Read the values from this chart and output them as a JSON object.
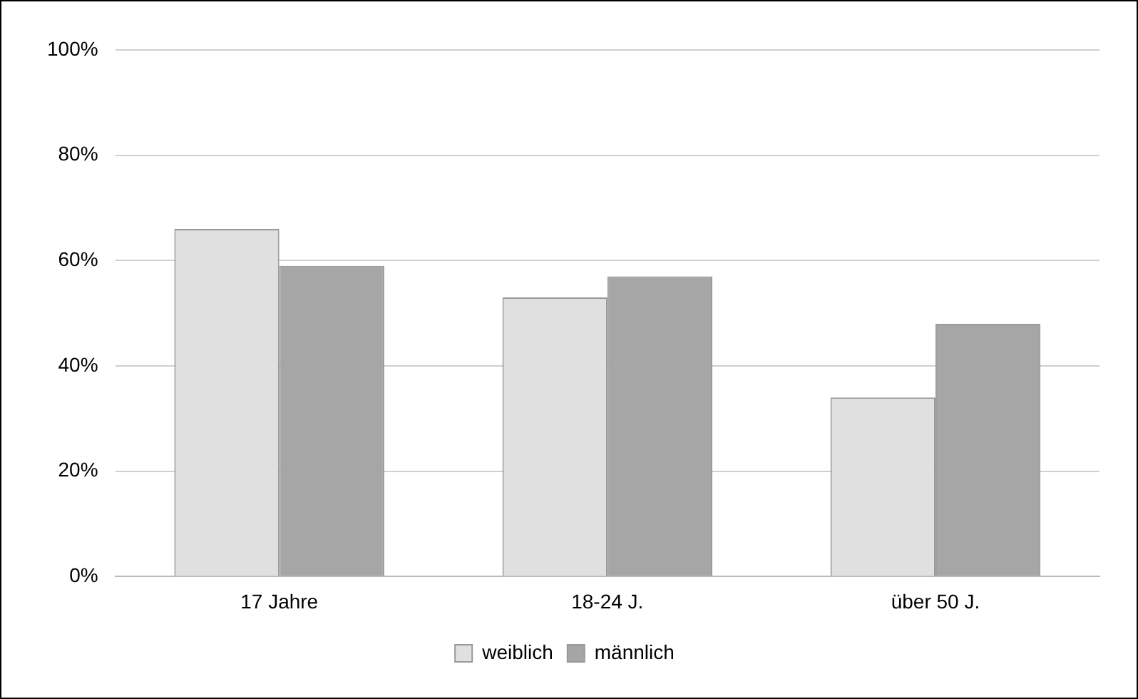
{
  "chart_data": {
    "type": "bar",
    "categories": [
      "17 Jahre",
      "18-24 J.",
      "über 50 J."
    ],
    "series": [
      {
        "name": "weiblich",
        "color": "#e0e0e0",
        "values": [
          66,
          53,
          34
        ]
      },
      {
        "name": "männlich",
        "color": "#a6a6a6",
        "values": [
          59,
          57,
          48
        ]
      }
    ],
    "ylim": [
      0,
      100
    ],
    "yticks": [
      {
        "value": 0,
        "label": "0%"
      },
      {
        "value": 20,
        "label": "20%"
      },
      {
        "value": 40,
        "label": "40%"
      },
      {
        "value": 60,
        "label": "60%"
      },
      {
        "value": 80,
        "label": "80%"
      },
      {
        "value": 100,
        "label": "100%"
      }
    ],
    "grid": "y",
    "legend": "bottom"
  }
}
